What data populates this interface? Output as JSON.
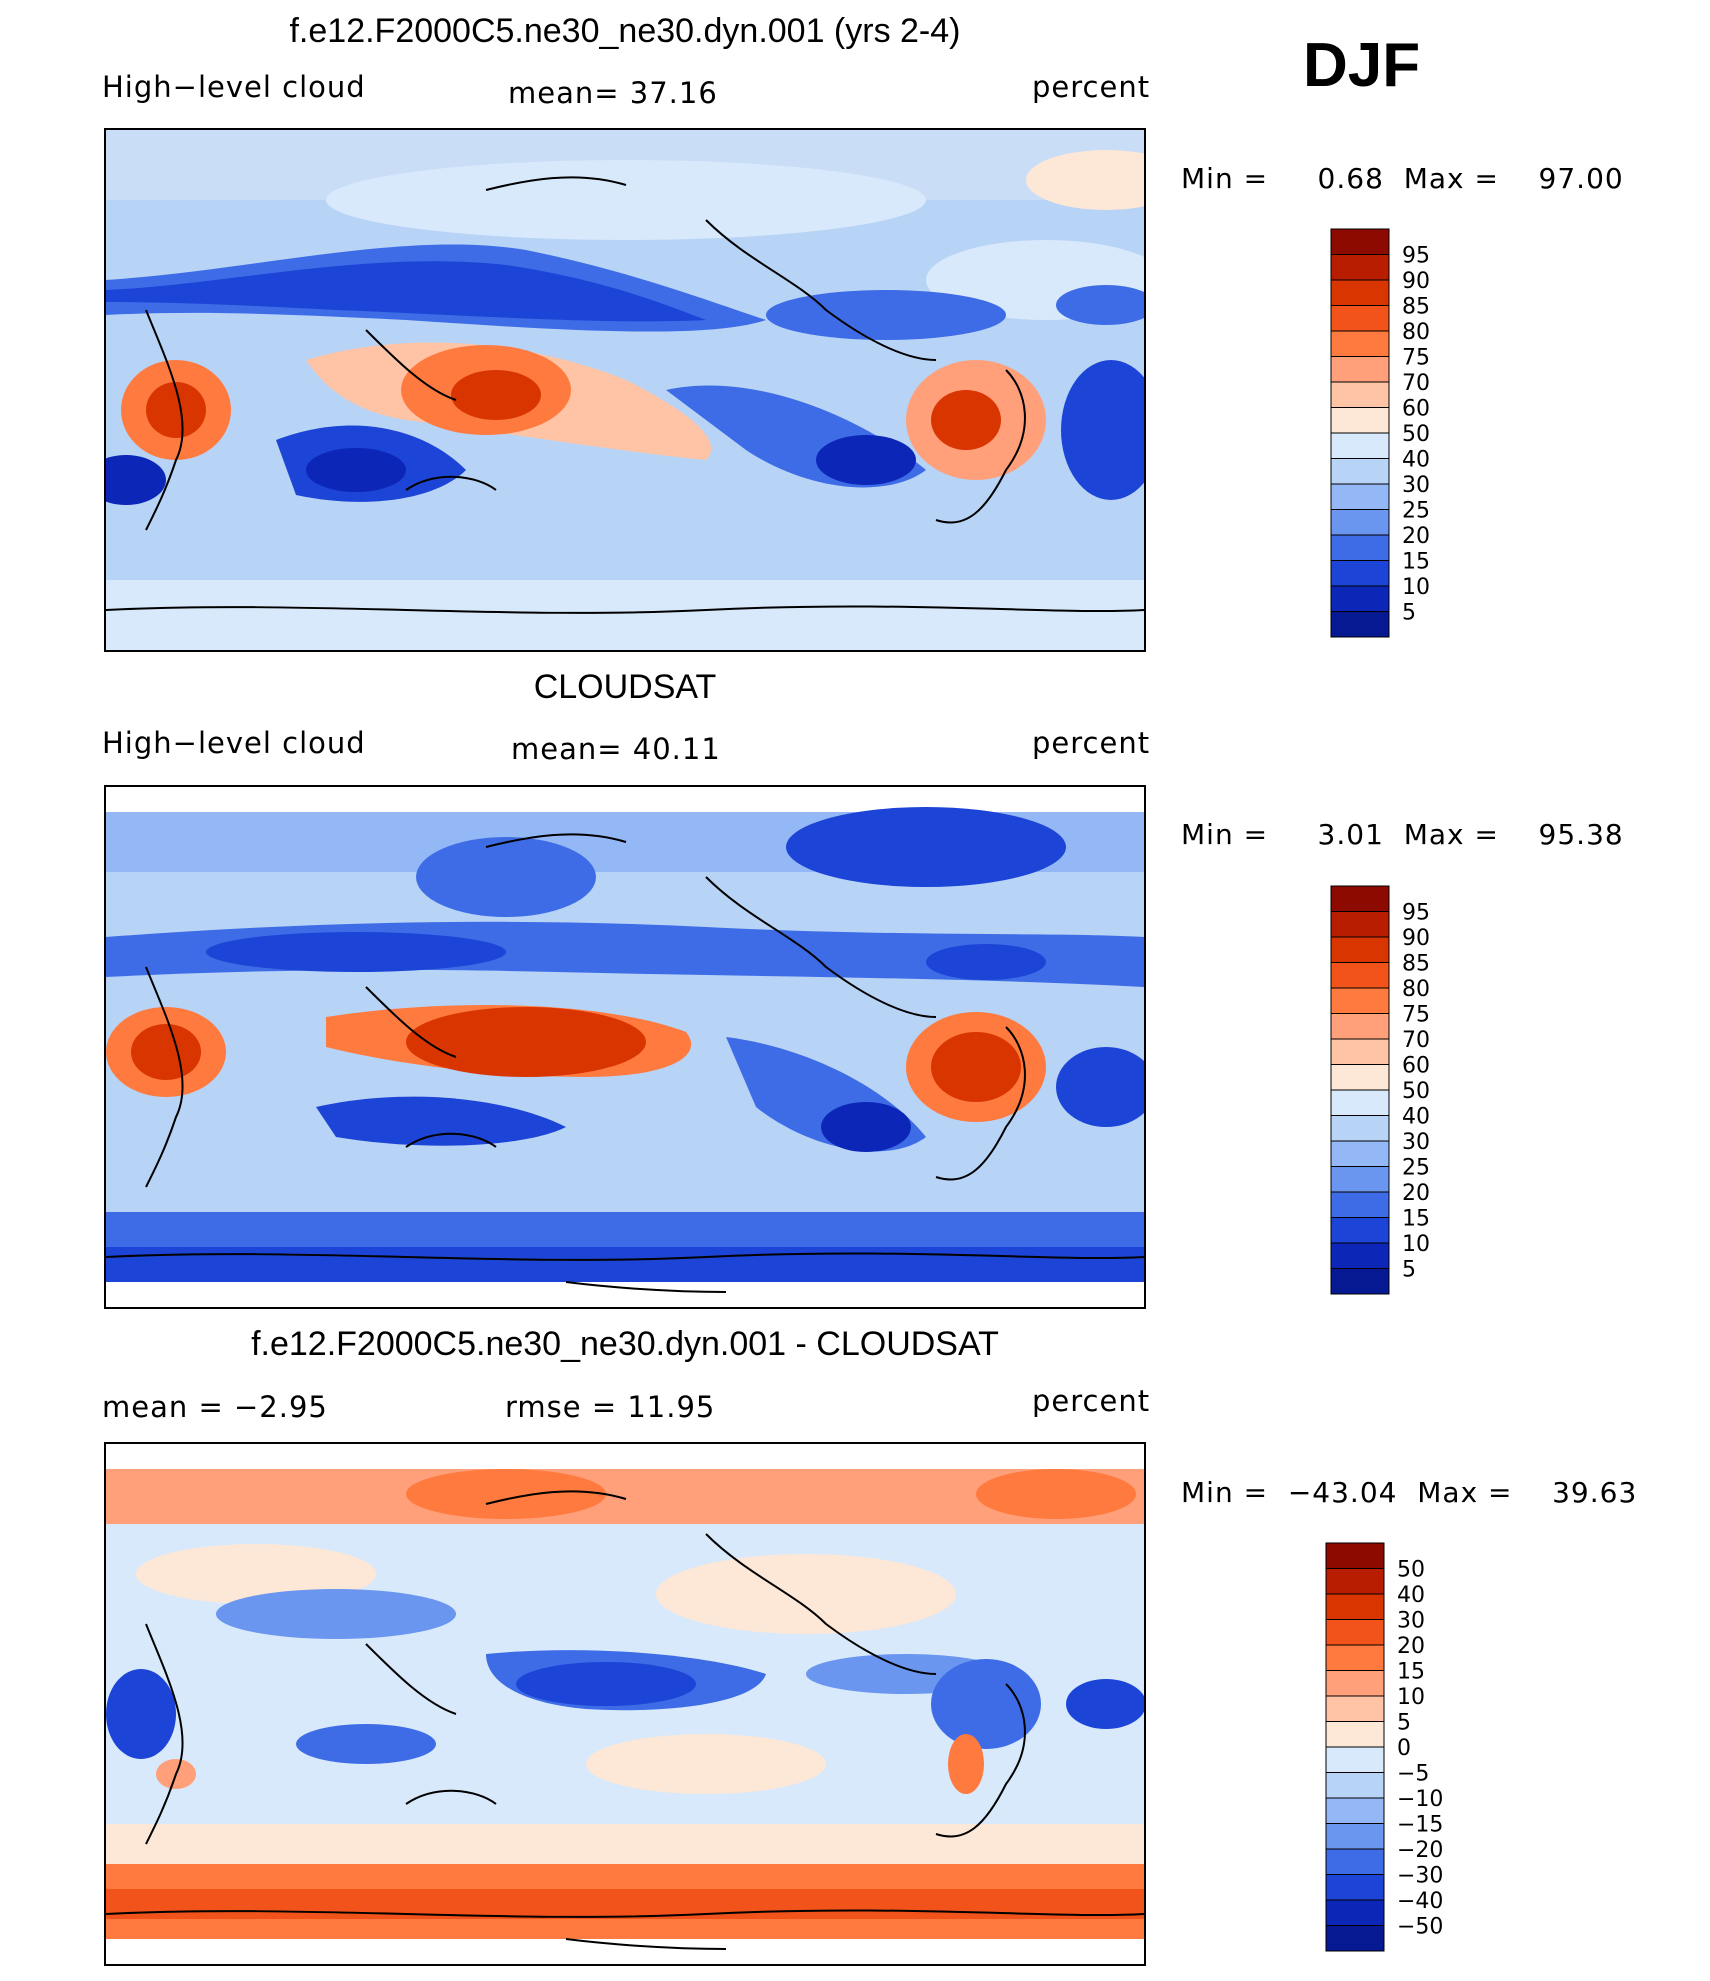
{
  "season": "DJF",
  "chart_data": [
    {
      "type": "heatmap",
      "title": "f.e12.F2000C5.ne30_ne30.dyn.001 (yrs 2-4)",
      "variable": "High−level cloud",
      "mean_text": "mean=   37.16",
      "units": "percent",
      "min_text": "Min =     0.68  Max =    97.00",
      "levels": [
        "95",
        "90",
        "85",
        "80",
        "75",
        "70",
        "60",
        "50",
        "40",
        "30",
        "25",
        "20",
        "15",
        "10",
        "5"
      ],
      "colors": [
        "#8c0a00",
        "#b81d00",
        "#d93500",
        "#f2531a",
        "#ff7a3f",
        "#ffa07a",
        "#ffc4a5",
        "#fde7d6",
        "#d8e9fb",
        "#b7d3f6",
        "#93b8f5",
        "#6b96f0",
        "#3e6ce6",
        "#1c44d6",
        "#0c27b8",
        "#061993"
      ]
    },
    {
      "type": "heatmap",
      "title": "CLOUDSAT",
      "variable": "High−level cloud",
      "mean_text": "mean=   40.11",
      "units": "percent",
      "min_text": "Min =     3.01  Max =    95.38",
      "levels": [
        "95",
        "90",
        "85",
        "80",
        "75",
        "70",
        "60",
        "50",
        "40",
        "30",
        "25",
        "20",
        "15",
        "10",
        "5"
      ],
      "colors": [
        "#8c0a00",
        "#b81d00",
        "#d93500",
        "#f2531a",
        "#ff7a3f",
        "#ffa07a",
        "#ffc4a5",
        "#fde7d6",
        "#d8e9fb",
        "#b7d3f6",
        "#93b8f5",
        "#6b96f0",
        "#3e6ce6",
        "#1c44d6",
        "#0c27b8",
        "#061993"
      ]
    },
    {
      "type": "heatmap",
      "title": "f.e12.F2000C5.ne30_ne30.dyn.001 - CLOUDSAT",
      "variable": "mean =    −2.95",
      "mean_text": "rmse =    11.95",
      "units": "percent",
      "min_text": "Min =  −43.04  Max =    39.63",
      "levels": [
        "50",
        "40",
        "30",
        "20",
        "15",
        "10",
        "5",
        "0",
        "−5",
        "−10",
        "−15",
        "−20",
        "−30",
        "−40",
        "−50"
      ],
      "colors": [
        "#8c0a00",
        "#b81d00",
        "#d93500",
        "#f2531a",
        "#ff7a3f",
        "#ffa07a",
        "#ffc4a5",
        "#fde7d6",
        "#d8e9fb",
        "#b7d3f6",
        "#93b8f5",
        "#6b96f0",
        "#3e6ce6",
        "#1c44d6",
        "#0c27b8",
        "#061993"
      ]
    }
  ]
}
